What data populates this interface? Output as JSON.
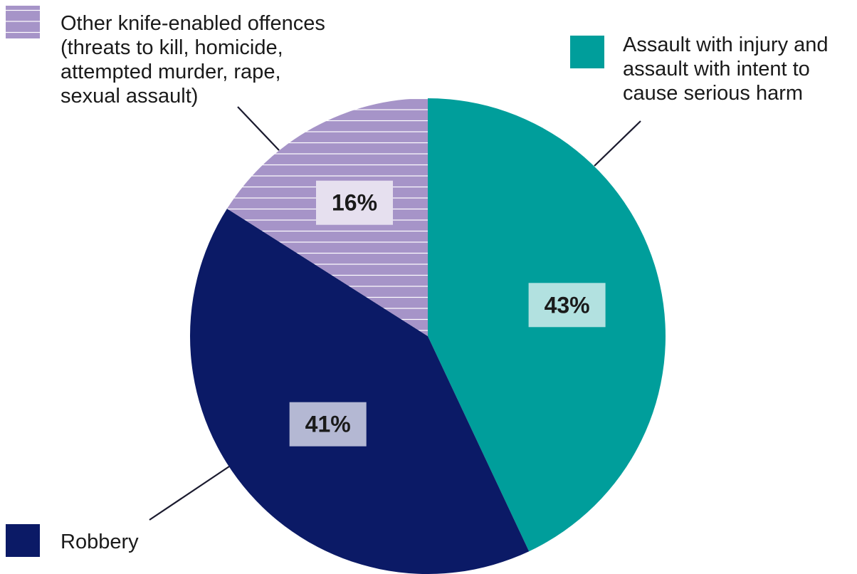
{
  "chart_data": {
    "type": "pie",
    "title": "",
    "series": [
      {
        "name": "Assault with injury and assault with intent to cause serious harm",
        "value": 43,
        "label": "43%",
        "color": "#009e9b",
        "label_bg": "#b2e1e0",
        "legend_lines": [
          "Assault with injury and",
          "assault with intent to",
          "cause serious harm"
        ]
      },
      {
        "name": "Robbery",
        "value": 41,
        "label": "41%",
        "color": "#0b1a66",
        "label_bg": "#b4b8d3",
        "legend_lines": [
          "Robbery"
        ]
      },
      {
        "name": "Other knife-enabled offences (threats to kill, homicide, attempted murder, rape, sexual assault)",
        "value": 16,
        "label": "16%",
        "color": "#a694c8",
        "label_bg": "#e6e0ef",
        "pattern": "horizontal-stripes",
        "legend_lines": [
          "Other knife-enabled offences",
          "(threats to kill, homicide,",
          "attempted murder, rape,",
          "sexual assault)"
        ]
      }
    ],
    "start_angle_deg": 0,
    "direction": "clockwise",
    "legend": "callouts"
  }
}
